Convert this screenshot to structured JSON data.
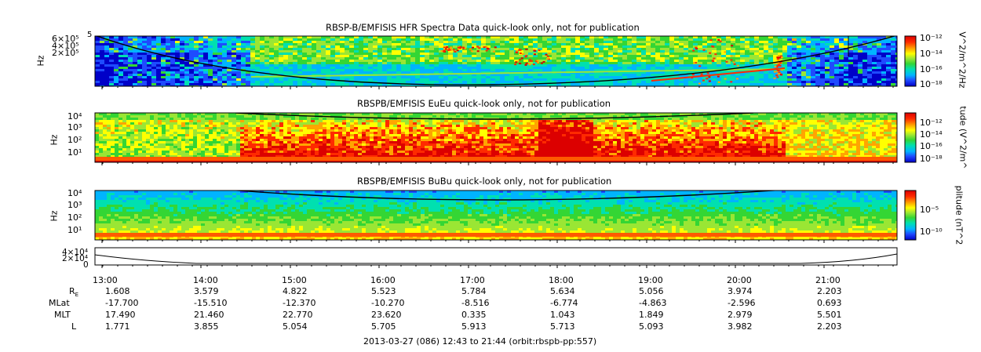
{
  "colors": {
    "spectrogram_stops": [
      "#0000c8",
      "#1e4bff",
      "#00b4ff",
      "#00e0b0",
      "#34d634",
      "#9ae634",
      "#ffff00",
      "#ffa500",
      "#ff2a00",
      "#dc0000"
    ],
    "fill_bar": "#ff5a00",
    "frame": "#000000"
  },
  "panels": [
    {
      "id": "hfr",
      "title": "RBSP-B/EMFISIS  HFR Spectra Data quick-look only, not for publication",
      "ylabel": "Hz",
      "ytick_labels": [
        "6×10⁵",
        "4×10⁵",
        "2×10⁵"
      ],
      "top_exponent_label": "5",
      "colorbar_label": "V^2/m^2/Hz",
      "colorbar_ticks": [
        "10⁻¹²",
        "10⁻¹⁴",
        "10⁻¹⁶",
        "10⁻¹⁸"
      ]
    },
    {
      "id": "eueu",
      "title": "RBSPB/EMFISIS  EuEu quick-look only, not for publication",
      "ylabel": "Hz",
      "ytick_labels": [
        "10⁴",
        "10³",
        "10²",
        "10¹"
      ],
      "colorbar_label": "tude (V^2/m^",
      "colorbar_ticks": [
        "10⁻¹²",
        "10⁻¹⁴",
        "10⁻¹⁶",
        "10⁻¹⁸"
      ]
    },
    {
      "id": "bubu",
      "title": "RBSPB/EMFISIS  BuBu quick-look only, not for publication",
      "ylabel": "Hz",
      "ytick_labels": [
        "10⁴",
        "10³",
        "10²",
        "10¹"
      ],
      "colorbar_label": "plitude (nT^2",
      "colorbar_ticks": [
        "10⁻⁵",
        "10⁻¹⁰"
      ]
    },
    {
      "id": "line",
      "ytick_labels": [
        "4×10⁴",
        "2×10⁴",
        "0"
      ]
    }
  ],
  "chart_data": {
    "type": "heatmap",
    "time_ticks": [
      "13:00",
      "14:00",
      "15:00",
      "16:00",
      "17:00",
      "18:00",
      "19:00",
      "20:00",
      "21:00"
    ],
    "ephemeris_rows": [
      {
        "label": "R",
        "subscript": "E",
        "values": [
          "1.608",
          "3.579",
          "4.822",
          "5.523",
          "5.784",
          "5.634",
          "5.056",
          "3.974",
          "2.203"
        ]
      },
      {
        "label": "MLat",
        "values": [
          "-17.700",
          "-15.510",
          "-12.370",
          "-10.270",
          "-8.516",
          "-6.774",
          "-4.863",
          "-2.596",
          "0.693"
        ]
      },
      {
        "label": "MLT",
        "values": [
          "17.490",
          "21.460",
          "22.770",
          "23.620",
          "0.335",
          "1.043",
          "1.849",
          "2.979",
          "5.501"
        ]
      },
      {
        "label": "L",
        "values": [
          "1.771",
          "3.855",
          "5.054",
          "5.705",
          "5.913",
          "5.713",
          "5.093",
          "3.982",
          "2.203"
        ]
      }
    ],
    "footer": "2013-03-27 (086) 12:43 to 21:44 (orbit:rbspb-pp:557)"
  }
}
